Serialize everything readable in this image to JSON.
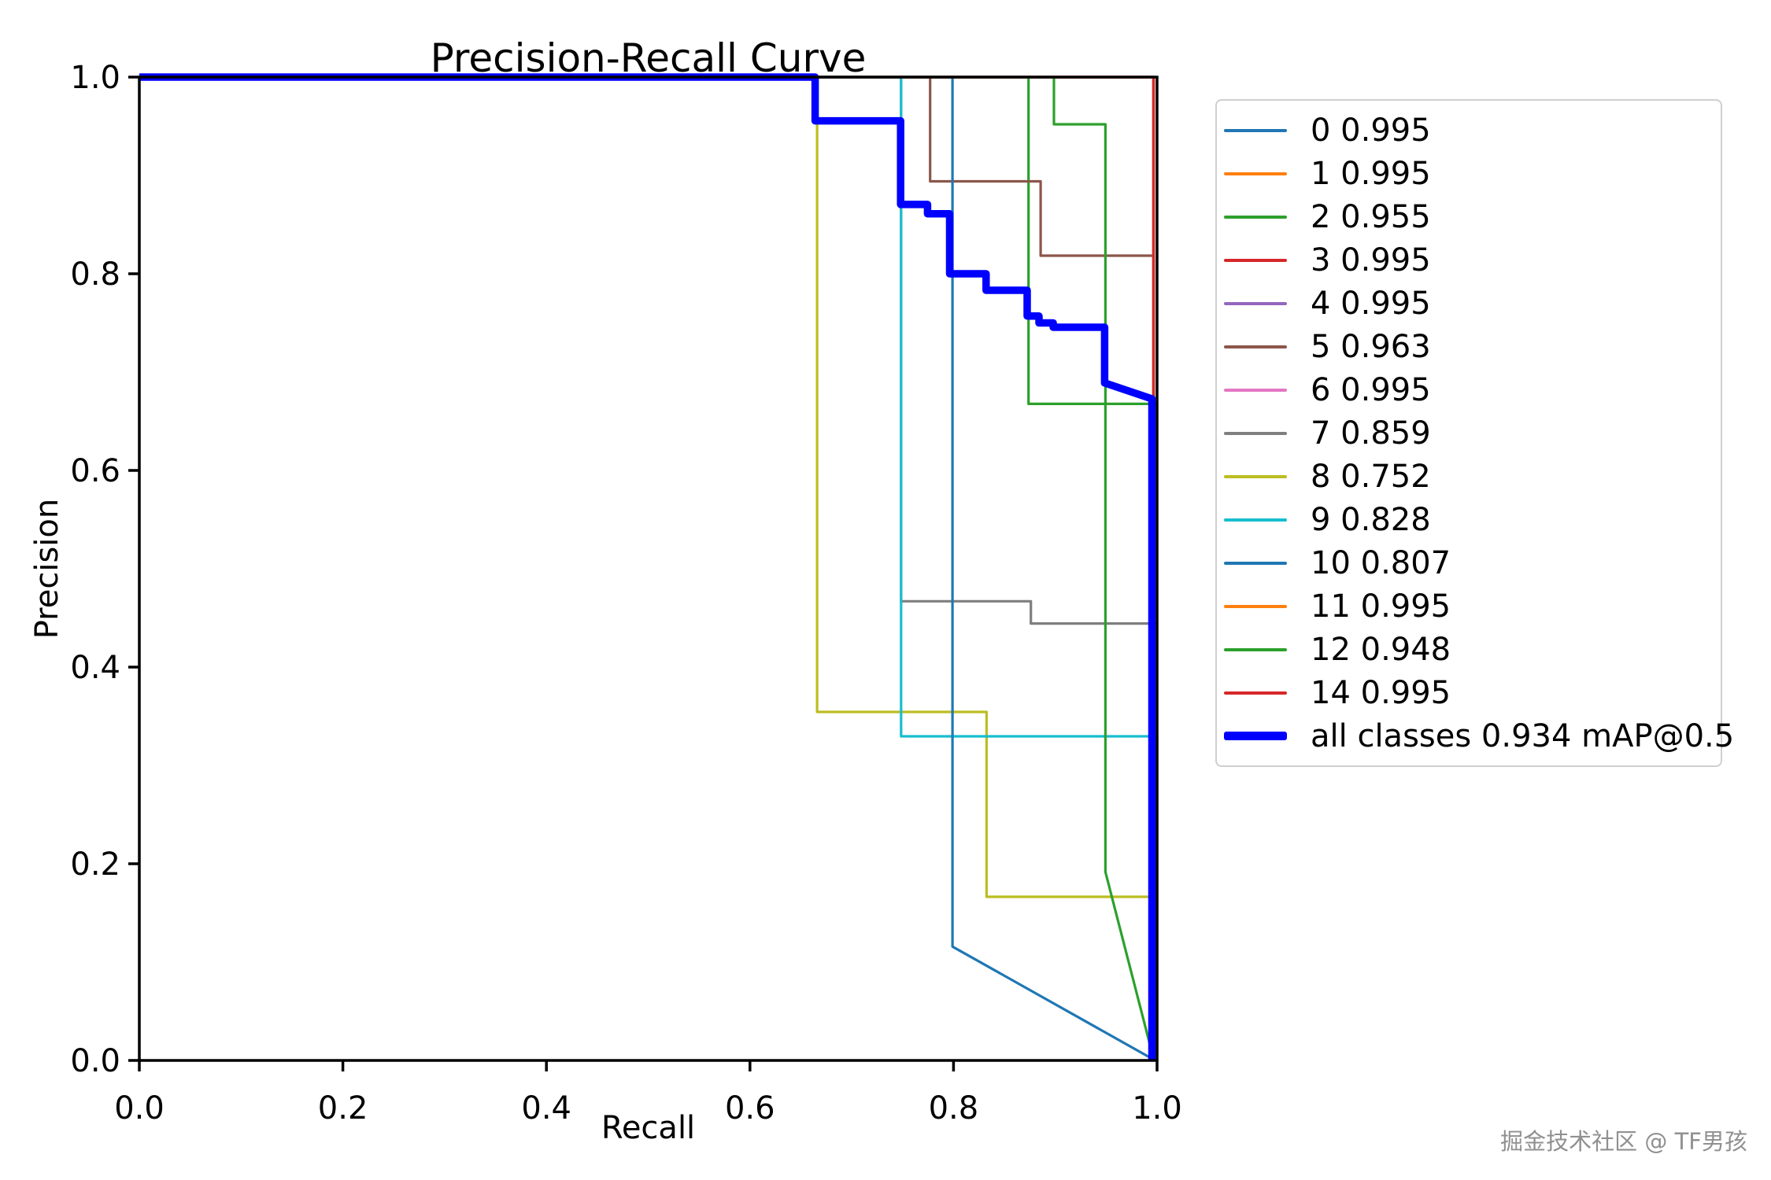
{
  "watermark": "掘金技术社区 @ TF男孩",
  "chart_data": {
    "type": "line",
    "title": "Precision-Recall Curve",
    "xlabel": "Recall",
    "ylabel": "Precision",
    "xlim": [
      0.0,
      1.0
    ],
    "ylim": [
      0.0,
      1.0
    ],
    "x_ticks": [
      "0.0",
      "0.2",
      "0.4",
      "0.6",
      "0.8",
      "1.0"
    ],
    "y_ticks": [
      "0.0",
      "0.2",
      "0.4",
      "0.6",
      "0.8",
      "1.0"
    ],
    "grid": false,
    "legend_position": "outside upper right",
    "map_at_05": 0.934,
    "series": [
      {
        "name": "0",
        "ap": 0.995,
        "color": "#1f77b4",
        "lw": 3.2,
        "points": [
          [
            0,
            1
          ],
          [
            0.9965,
            1
          ],
          [
            0.9965,
            0
          ]
        ]
      },
      {
        "name": "1",
        "ap": 0.995,
        "color": "#ff7f0e",
        "lw": 3.2,
        "points": [
          [
            0,
            1
          ],
          [
            0.9965,
            1
          ],
          [
            0.9965,
            0
          ]
        ]
      },
      {
        "name": "2",
        "ap": 0.955,
        "color": "#2ca02c",
        "lw": 3.2,
        "points": [
          [
            0,
            1
          ],
          [
            0.8737,
            1
          ],
          [
            0.8737,
            0.6677
          ],
          [
            1,
            0.6677
          ],
          [
            1,
            0
          ]
        ]
      },
      {
        "name": "3",
        "ap": 0.995,
        "color": "#d62728",
        "lw": 3.2,
        "points": [
          [
            0,
            1
          ],
          [
            0.9965,
            1
          ],
          [
            0.9965,
            0
          ]
        ]
      },
      {
        "name": "4",
        "ap": 0.995,
        "color": "#9467bd",
        "lw": 3.2,
        "points": [
          [
            0,
            1
          ],
          [
            0.9965,
            1
          ],
          [
            0.9965,
            0
          ]
        ]
      },
      {
        "name": "5",
        "ap": 0.963,
        "color": "#8c564b",
        "lw": 3.2,
        "points": [
          [
            0,
            1
          ],
          [
            0.777,
            1
          ],
          [
            0.777,
            0.894
          ],
          [
            0.8856,
            0.894
          ],
          [
            0.8856,
            0.8184
          ],
          [
            0.9965,
            0.8184
          ],
          [
            0.9965,
            0
          ]
        ]
      },
      {
        "name": "6",
        "ap": 0.995,
        "color": "#e377c2",
        "lw": 3.2,
        "points": [
          [
            0,
            1
          ],
          [
            0.9965,
            1
          ],
          [
            0.9965,
            0
          ]
        ]
      },
      {
        "name": "7",
        "ap": 0.859,
        "color": "#7f7f7f",
        "lw": 3.2,
        "points": [
          [
            0,
            1
          ],
          [
            0.7485,
            1
          ],
          [
            0.7485,
            0.467
          ],
          [
            0.876,
            0.467
          ],
          [
            0.876,
            0.4443
          ],
          [
            1,
            0.4443
          ],
          [
            1,
            0
          ]
        ]
      },
      {
        "name": "8",
        "ap": 0.752,
        "color": "#bcbd22",
        "lw": 3.2,
        "points": [
          [
            0,
            1
          ],
          [
            0.666,
            1
          ],
          [
            0.666,
            0.3544
          ],
          [
            0.8325,
            0.3544
          ],
          [
            0.8325,
            0.1664
          ],
          [
            0.9955,
            0.1664
          ],
          [
            0.9955,
            0
          ]
        ]
      },
      {
        "name": "9",
        "ap": 0.828,
        "color": "#17becf",
        "lw": 3.2,
        "points": [
          [
            0,
            1
          ],
          [
            0.7485,
            1
          ],
          [
            0.7485,
            0.3296
          ],
          [
            1,
            0.3296
          ],
          [
            1,
            0
          ]
        ]
      },
      {
        "name": "10",
        "ap": 0.807,
        "color": "#1f77b4",
        "lw": 3.2,
        "points": [
          [
            0,
            1
          ],
          [
            0.799,
            1
          ],
          [
            0.799,
            0.1158
          ],
          [
            0.9965,
            0.001
          ]
        ]
      },
      {
        "name": "11",
        "ap": 0.995,
        "color": "#ff7f0e",
        "lw": 3.2,
        "points": [
          [
            0,
            1
          ],
          [
            0.9965,
            1
          ],
          [
            0.9965,
            0
          ]
        ]
      },
      {
        "name": "12",
        "ap": 0.948,
        "color": "#2ca02c",
        "lw": 3.2,
        "points": [
          [
            0,
            1
          ],
          [
            0.8987,
            1
          ],
          [
            0.8987,
            0.952
          ],
          [
            0.9493,
            0.952
          ],
          [
            0.9493,
            0.1917
          ],
          [
            0.9965,
            0.002
          ]
        ]
      },
      {
        "name": "14",
        "ap": 0.995,
        "color": "#d62728",
        "lw": 3.2,
        "points": [
          [
            0,
            1
          ],
          [
            0.9965,
            1
          ],
          [
            0.9965,
            0
          ]
        ]
      },
      {
        "name": "all classes",
        "ap": 0.934,
        "color": "#0000ff",
        "lw": 9.5,
        "points": [
          [
            0,
            1
          ],
          [
            0.664,
            1
          ],
          [
            0.664,
            0.9555
          ],
          [
            0.748,
            0.9555
          ],
          [
            0.748,
            0.8705
          ],
          [
            0.7745,
            0.8705
          ],
          [
            0.7745,
            0.861
          ],
          [
            0.7962,
            0.861
          ],
          [
            0.7962,
            0.8
          ],
          [
            0.832,
            0.8
          ],
          [
            0.832,
            0.7832
          ],
          [
            0.8724,
            0.7832
          ],
          [
            0.8724,
            0.757
          ],
          [
            0.884,
            0.757
          ],
          [
            0.884,
            0.75
          ],
          [
            0.898,
            0.75
          ],
          [
            0.898,
            0.7456
          ],
          [
            0.9485,
            0.7456
          ],
          [
            0.9485,
            0.689
          ],
          [
            0.995,
            0.6728
          ],
          [
            0.995,
            0
          ]
        ]
      }
    ],
    "legend": [
      {
        "label": "0 0.995",
        "color": "#1f77b4",
        "thick": false
      },
      {
        "label": "1 0.995",
        "color": "#ff7f0e",
        "thick": false
      },
      {
        "label": "2 0.955",
        "color": "#2ca02c",
        "thick": false
      },
      {
        "label": "3 0.995",
        "color": "#d62728",
        "thick": false
      },
      {
        "label": "4 0.995",
        "color": "#9467bd",
        "thick": false
      },
      {
        "label": "5 0.963",
        "color": "#8c564b",
        "thick": false
      },
      {
        "label": "6 0.995",
        "color": "#e377c2",
        "thick": false
      },
      {
        "label": "7 0.859",
        "color": "#7f7f7f",
        "thick": false
      },
      {
        "label": "8 0.752",
        "color": "#bcbd22",
        "thick": false
      },
      {
        "label": "9 0.828",
        "color": "#17becf",
        "thick": false
      },
      {
        "label": "10 0.807",
        "color": "#1f77b4",
        "thick": false
      },
      {
        "label": "11 0.995",
        "color": "#ff7f0e",
        "thick": false
      },
      {
        "label": "12 0.948",
        "color": "#2ca02c",
        "thick": false
      },
      {
        "label": "14 0.995",
        "color": "#d62728",
        "thick": false
      },
      {
        "label": "all classes 0.934 mAP@0.5",
        "color": "#0000ff",
        "thick": true
      }
    ]
  }
}
